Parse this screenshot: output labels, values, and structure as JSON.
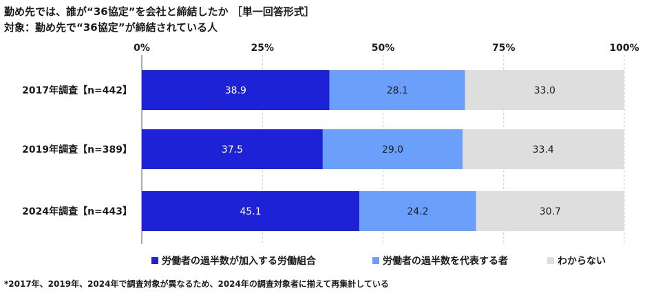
{
  "title": "勤め先では、誰が“36協定”を会社と締結したか ［単一回答形式］",
  "subtitle": "対象：勤め先で“36協定”が締結されている人",
  "footnote": "*2017年、2019年、2024年で調査対象が異なるため、2024年の調査対象者に揃えて再集計している",
  "chart_data": {
    "type": "bar",
    "orientation": "horizontal",
    "stacked": true,
    "percent_stacked": true,
    "categories": [
      "2017年調査【n=442】",
      "2019年調査【n=389】",
      "2024年調査【n=443】"
    ],
    "series": [
      {
        "name": "労働者の過半数が加入する労働組合",
        "values": [
          38.9,
          37.5,
          45.1
        ],
        "color": "#1e22d6",
        "label_color": "#ffffff"
      },
      {
        "name": "労働者の過半数を代表する者",
        "values": [
          28.1,
          29.0,
          24.2
        ],
        "color": "#6aa0fb",
        "label_color": "#1a1a1a"
      },
      {
        "name": "わからない",
        "values": [
          33.0,
          33.4,
          30.7
        ],
        "color": "#dedede",
        "label_color": "#1a1a1a"
      }
    ],
    "xticks": [
      "0%",
      "25%",
      "50%",
      "75%",
      "100%"
    ],
    "xlim": [
      0,
      100
    ],
    "grid": true,
    "legend": "bottom"
  }
}
